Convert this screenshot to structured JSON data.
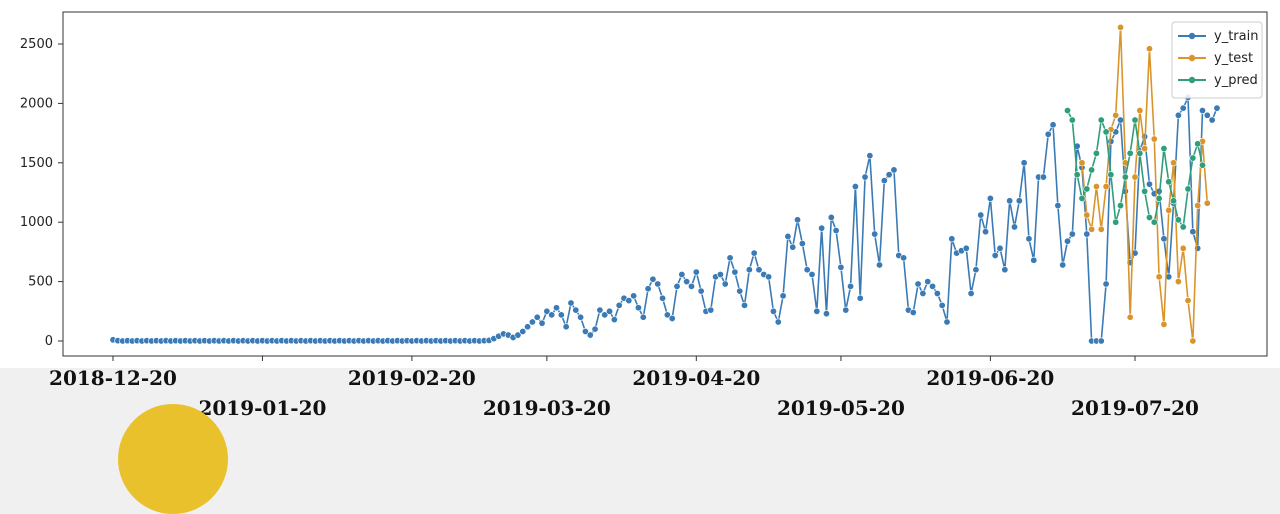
{
  "chart_data": {
    "type": "line",
    "ylim": [
      -100,
      2750
    ],
    "yticks": [
      0,
      500,
      1000,
      1500,
      2000,
      2500
    ],
    "legend_position": "top-right",
    "grid": false,
    "xtick_dates": [
      "2018-12-20",
      "2019-01-20",
      "2019-02-20",
      "2019-03-20",
      "2019-04-20",
      "2019-05-20",
      "2019-06-20",
      "2019-07-20"
    ],
    "xtick_labels_upper": [
      "2018-12-20",
      "2019-02-20",
      "2019-04-20",
      "2019-06-20"
    ],
    "xtick_labels_lower": [
      "2019-01-20",
      "2019-03-20",
      "2019-05-20",
      "2019-07-20"
    ],
    "series": [
      {
        "name": "y_train",
        "color": "#3a7ab5",
        "start_date": "2018-12-20",
        "values": [
          10,
          3,
          0,
          3,
          0,
          3,
          0,
          3,
          0,
          3,
          0,
          3,
          0,
          3,
          0,
          3,
          0,
          3,
          0,
          3,
          0,
          3,
          0,
          3,
          0,
          3,
          0,
          3,
          0,
          3,
          0,
          3,
          0,
          3,
          0,
          3,
          0,
          3,
          0,
          3,
          0,
          3,
          0,
          3,
          0,
          3,
          0,
          3,
          0,
          3,
          0,
          3,
          0,
          3,
          0,
          3,
          0,
          3,
          0,
          3,
          0,
          3,
          0,
          3,
          0,
          3,
          0,
          3,
          0,
          3,
          0,
          3,
          0,
          3,
          0,
          3,
          0,
          3,
          5,
          20,
          40,
          60,
          50,
          30,
          50,
          80,
          120,
          160,
          200,
          150,
          250,
          220,
          280,
          220,
          120,
          320,
          260,
          200,
          80,
          50,
          100,
          260,
          220,
          250,
          180,
          300,
          360,
          340,
          380,
          280,
          200,
          440,
          520,
          480,
          360,
          220,
          190,
          460,
          560,
          500,
          460,
          580,
          420,
          250,
          260,
          540,
          560,
          480,
          700,
          580,
          420,
          300,
          600,
          740,
          600,
          560,
          540,
          250,
          160,
          380,
          880,
          790,
          1020,
          820,
          600,
          560,
          250,
          950,
          230,
          1040,
          930,
          620,
          260,
          460,
          1300,
          360,
          1380,
          1560,
          900,
          640,
          1350,
          1400,
          1440,
          720,
          700,
          260,
          240,
          480,
          400,
          500,
          460,
          400,
          300,
          160,
          860,
          740,
          760,
          780,
          400,
          600,
          1060,
          920,
          1200,
          720,
          780,
          600,
          1180,
          960,
          1180,
          1500,
          860,
          680,
          1380,
          1380,
          1740,
          1820,
          1140,
          640,
          840,
          900,
          1640,
          1460,
          900,
          0,
          0,
          0,
          480,
          1680,
          1760,
          1860,
          1260,
          660,
          740,
          1600,
          1720,
          1320,
          1240,
          1260,
          860,
          540,
          1160,
          1900,
          1960,
          2050,
          920,
          780,
          1940,
          1900,
          1860,
          1960
        ]
      },
      {
        "name": "y_test",
        "color": "#d9952c",
        "start_date": "2019-07-09",
        "values": [
          1500,
          1060,
          940,
          1300,
          940,
          1300,
          1780,
          1900,
          2640,
          1500,
          200,
          1380,
          1940,
          1620,
          2460,
          1700,
          540,
          140,
          1100,
          1500,
          500,
          780,
          340,
          0,
          1140,
          1680,
          1160
        ]
      },
      {
        "name": "y_pred",
        "color": "#2f9e7a",
        "start_date": "2019-07-06",
        "values": [
          1940,
          1860,
          1400,
          1200,
          1280,
          1440,
          1580,
          1860,
          1760,
          1400,
          1000,
          1140,
          1380,
          1580,
          1860,
          1580,
          1260,
          1040,
          1000,
          1200,
          1620,
          1340,
          1180,
          1020,
          960,
          1280,
          1540,
          1660,
          1480
        ]
      }
    ]
  }
}
